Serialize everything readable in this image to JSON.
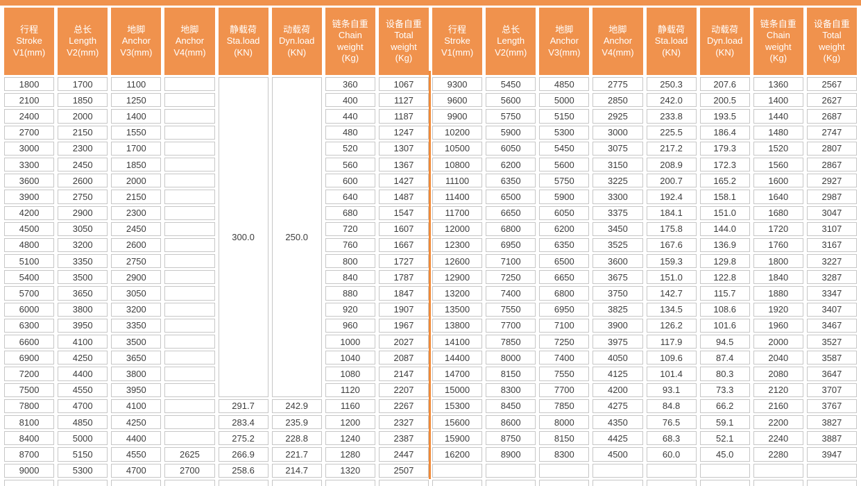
{
  "table": {
    "header_columns": [
      {
        "lines": [
          "行程",
          "Stroke",
          "V1(mm)"
        ]
      },
      {
        "lines": [
          "总长",
          "Length",
          "V2(mm)"
        ]
      },
      {
        "lines": [
          "地脚",
          "Anchor",
          "V3(mm)"
        ]
      },
      {
        "lines": [
          "地脚",
          "Anchor",
          "V4(mm)"
        ]
      },
      {
        "lines": [
          "静载荷",
          "Sta.load",
          "(KN)"
        ]
      },
      {
        "lines": [
          "动载荷",
          "Dyn.load",
          "(KN)"
        ]
      },
      {
        "lines": [
          "链条自重",
          "Chain",
          "weight",
          "(Kg)"
        ]
      },
      {
        "lines": [
          "设备自重",
          "Total",
          "weight",
          "(Kg)"
        ]
      }
    ],
    "left": {
      "merged": {
        "sta_load": "300.0",
        "dyn_load": "250.0",
        "rowspan": 20
      },
      "rows": [
        [
          "1800",
          "1700",
          "1100",
          "",
          null,
          null,
          "360",
          "1067"
        ],
        [
          "2100",
          "1850",
          "1250",
          "",
          null,
          null,
          "400",
          "1127"
        ],
        [
          "2400",
          "2000",
          "1400",
          "",
          null,
          null,
          "440",
          "1187"
        ],
        [
          "2700",
          "2150",
          "1550",
          "",
          null,
          null,
          "480",
          "1247"
        ],
        [
          "3000",
          "2300",
          "1700",
          "",
          null,
          null,
          "520",
          "1307"
        ],
        [
          "3300",
          "2450",
          "1850",
          "",
          null,
          null,
          "560",
          "1367"
        ],
        [
          "3600",
          "2600",
          "2000",
          "",
          null,
          null,
          "600",
          "1427"
        ],
        [
          "3900",
          "2750",
          "2150",
          "",
          null,
          null,
          "640",
          "1487"
        ],
        [
          "4200",
          "2900",
          "2300",
          "",
          null,
          null,
          "680",
          "1547"
        ],
        [
          "4500",
          "3050",
          "2450",
          "",
          null,
          null,
          "720",
          "1607"
        ],
        [
          "4800",
          "3200",
          "2600",
          "",
          null,
          null,
          "760",
          "1667"
        ],
        [
          "5100",
          "3350",
          "2750",
          "",
          null,
          null,
          "800",
          "1727"
        ],
        [
          "5400",
          "3500",
          "2900",
          "",
          null,
          null,
          "840",
          "1787"
        ],
        [
          "5700",
          "3650",
          "3050",
          "",
          null,
          null,
          "880",
          "1847"
        ],
        [
          "6000",
          "3800",
          "3200",
          "",
          null,
          null,
          "920",
          "1907"
        ],
        [
          "6300",
          "3950",
          "3350",
          "",
          null,
          null,
          "960",
          "1967"
        ],
        [
          "6600",
          "4100",
          "3500",
          "",
          null,
          null,
          "1000",
          "2027"
        ],
        [
          "6900",
          "4250",
          "3650",
          "",
          null,
          null,
          "1040",
          "2087"
        ],
        [
          "7200",
          "4400",
          "3800",
          "",
          null,
          null,
          "1080",
          "2147"
        ],
        [
          "7500",
          "4550",
          "3950",
          "",
          null,
          null,
          "1120",
          "2207"
        ],
        [
          "7800",
          "4700",
          "4100",
          "",
          "291.7",
          "242.9",
          "1160",
          "2267"
        ],
        [
          "8100",
          "4850",
          "4250",
          "",
          "283.4",
          "235.9",
          "1200",
          "2327"
        ],
        [
          "8400",
          "5000",
          "4400",
          "",
          "275.2",
          "228.8",
          "1240",
          "2387"
        ],
        [
          "8700",
          "5150",
          "4550",
          "2625",
          "266.9",
          "221.7",
          "1280",
          "2447"
        ],
        [
          "9000",
          "5300",
          "4700",
          "2700",
          "258.6",
          "214.7",
          "1320",
          "2507"
        ]
      ]
    },
    "right": {
      "rows": [
        [
          "9300",
          "5450",
          "4850",
          "2775",
          "250.3",
          "207.6",
          "1360",
          "2567"
        ],
        [
          "9600",
          "5600",
          "5000",
          "2850",
          "242.0",
          "200.5",
          "1400",
          "2627"
        ],
        [
          "9900",
          "5750",
          "5150",
          "2925",
          "233.8",
          "193.5",
          "1440",
          "2687"
        ],
        [
          "10200",
          "5900",
          "5300",
          "3000",
          "225.5",
          "186.4",
          "1480",
          "2747"
        ],
        [
          "10500",
          "6050",
          "5450",
          "3075",
          "217.2",
          "179.3",
          "1520",
          "2807"
        ],
        [
          "10800",
          "6200",
          "5600",
          "3150",
          "208.9",
          "172.3",
          "1560",
          "2867"
        ],
        [
          "11100",
          "6350",
          "5750",
          "3225",
          "200.7",
          "165.2",
          "1600",
          "2927"
        ],
        [
          "11400",
          "6500",
          "5900",
          "3300",
          "192.4",
          "158.1",
          "1640",
          "2987"
        ],
        [
          "11700",
          "6650",
          "6050",
          "3375",
          "184.1",
          "151.0",
          "1680",
          "3047"
        ],
        [
          "12000",
          "6800",
          "6200",
          "3450",
          "175.8",
          "144.0",
          "1720",
          "3107"
        ],
        [
          "12300",
          "6950",
          "6350",
          "3525",
          "167.6",
          "136.9",
          "1760",
          "3167"
        ],
        [
          "12600",
          "7100",
          "6500",
          "3600",
          "159.3",
          "129.8",
          "1800",
          "3227"
        ],
        [
          "12900",
          "7250",
          "6650",
          "3675",
          "151.0",
          "122.8",
          "1840",
          "3287"
        ],
        [
          "13200",
          "7400",
          "6800",
          "3750",
          "142.7",
          "115.7",
          "1880",
          "3347"
        ],
        [
          "13500",
          "7550",
          "6950",
          "3825",
          "134.5",
          "108.6",
          "1920",
          "3407"
        ],
        [
          "13800",
          "7700",
          "7100",
          "3900",
          "126.2",
          "101.6",
          "1960",
          "3467"
        ],
        [
          "14100",
          "7850",
          "7250",
          "3975",
          "117.9",
          "94.5",
          "2000",
          "3527"
        ],
        [
          "14400",
          "8000",
          "7400",
          "4050",
          "109.6",
          "87.4",
          "2040",
          "3587"
        ],
        [
          "14700",
          "8150",
          "7550",
          "4125",
          "101.4",
          "80.3",
          "2080",
          "3647"
        ],
        [
          "15000",
          "8300",
          "7700",
          "4200",
          "93.1",
          "73.3",
          "2120",
          "3707"
        ],
        [
          "15300",
          "8450",
          "7850",
          "4275",
          "84.8",
          "66.2",
          "2160",
          "3767"
        ],
        [
          "15600",
          "8600",
          "8000",
          "4350",
          "76.5",
          "59.1",
          "2200",
          "3827"
        ],
        [
          "15900",
          "8750",
          "8150",
          "4425",
          "68.3",
          "52.1",
          "2240",
          "3887"
        ],
        [
          "16200",
          "8900",
          "8300",
          "4500",
          "60.0",
          "45.0",
          "2280",
          "3947"
        ],
        [
          "",
          "",
          "",
          "",
          "",
          "",
          "",
          ""
        ]
      ]
    }
  },
  "colors": {
    "header_orange": "#F0924D",
    "divider_orange": "#F08A38",
    "cell_border_gray": "#c6c6c6",
    "data_text": "#3c3c3c",
    "header_text": "#ffffff"
  }
}
